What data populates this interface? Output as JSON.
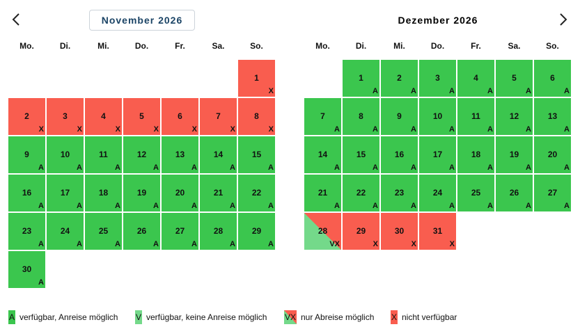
{
  "nav": {
    "prev_icon": "chevron-left-icon",
    "next_icon": "chevron-right-icon"
  },
  "weekdays": [
    "Mo.",
    "Di.",
    "Mi.",
    "Do.",
    "Fr.",
    "Sa.",
    "So."
  ],
  "months": [
    {
      "title": "November 2026",
      "title_is_button": true,
      "start_offset": 6,
      "days": [
        {
          "day": "1",
          "status": "X",
          "mark": "X"
        },
        {
          "day": "2",
          "status": "X",
          "mark": "X"
        },
        {
          "day": "3",
          "status": "X",
          "mark": "X"
        },
        {
          "day": "4",
          "status": "X",
          "mark": "X"
        },
        {
          "day": "5",
          "status": "X",
          "mark": "X"
        },
        {
          "day": "6",
          "status": "X",
          "mark": "X"
        },
        {
          "day": "7",
          "status": "X",
          "mark": "X"
        },
        {
          "day": "8",
          "status": "X",
          "mark": "X"
        },
        {
          "day": "9",
          "status": "A",
          "mark": "A"
        },
        {
          "day": "10",
          "status": "A",
          "mark": "A"
        },
        {
          "day": "11",
          "status": "A",
          "mark": "A"
        },
        {
          "day": "12",
          "status": "A",
          "mark": "A"
        },
        {
          "day": "13",
          "status": "A",
          "mark": "A"
        },
        {
          "day": "14",
          "status": "A",
          "mark": "A"
        },
        {
          "day": "15",
          "status": "A",
          "mark": "A"
        },
        {
          "day": "16",
          "status": "A",
          "mark": "A"
        },
        {
          "day": "17",
          "status": "A",
          "mark": "A"
        },
        {
          "day": "18",
          "status": "A",
          "mark": "A"
        },
        {
          "day": "19",
          "status": "A",
          "mark": "A"
        },
        {
          "day": "20",
          "status": "A",
          "mark": "A"
        },
        {
          "day": "21",
          "status": "A",
          "mark": "A"
        },
        {
          "day": "22",
          "status": "A",
          "mark": "A"
        },
        {
          "day": "23",
          "status": "A",
          "mark": "A"
        },
        {
          "day": "24",
          "status": "A",
          "mark": "A"
        },
        {
          "day": "25",
          "status": "A",
          "mark": "A"
        },
        {
          "day": "26",
          "status": "A",
          "mark": "A"
        },
        {
          "day": "27",
          "status": "A",
          "mark": "A"
        },
        {
          "day": "28",
          "status": "A",
          "mark": "A"
        },
        {
          "day": "29",
          "status": "A",
          "mark": "A"
        },
        {
          "day": "30",
          "status": "A",
          "mark": "A"
        }
      ]
    },
    {
      "title": "Dezember 2026",
      "title_is_button": false,
      "start_offset": 1,
      "days": [
        {
          "day": "1",
          "status": "A",
          "mark": "A"
        },
        {
          "day": "2",
          "status": "A",
          "mark": "A"
        },
        {
          "day": "3",
          "status": "A",
          "mark": "A"
        },
        {
          "day": "4",
          "status": "A",
          "mark": "A"
        },
        {
          "day": "5",
          "status": "A",
          "mark": "A"
        },
        {
          "day": "6",
          "status": "A",
          "mark": "A"
        },
        {
          "day": "7",
          "status": "A",
          "mark": "A"
        },
        {
          "day": "8",
          "status": "A",
          "mark": "A"
        },
        {
          "day": "9",
          "status": "A",
          "mark": "A"
        },
        {
          "day": "10",
          "status": "A",
          "mark": "A"
        },
        {
          "day": "11",
          "status": "A",
          "mark": "A"
        },
        {
          "day": "12",
          "status": "A",
          "mark": "A"
        },
        {
          "day": "13",
          "status": "A",
          "mark": "A"
        },
        {
          "day": "14",
          "status": "A",
          "mark": "A"
        },
        {
          "day": "15",
          "status": "A",
          "mark": "A"
        },
        {
          "day": "16",
          "status": "A",
          "mark": "A"
        },
        {
          "day": "17",
          "status": "A",
          "mark": "A"
        },
        {
          "day": "18",
          "status": "A",
          "mark": "A"
        },
        {
          "day": "19",
          "status": "A",
          "mark": "A"
        },
        {
          "day": "20",
          "status": "A",
          "mark": "A"
        },
        {
          "day": "21",
          "status": "A",
          "mark": "A"
        },
        {
          "day": "22",
          "status": "A",
          "mark": "A"
        },
        {
          "day": "23",
          "status": "A",
          "mark": "A"
        },
        {
          "day": "24",
          "status": "A",
          "mark": "A"
        },
        {
          "day": "25",
          "status": "A",
          "mark": "A"
        },
        {
          "day": "26",
          "status": "A",
          "mark": "A"
        },
        {
          "day": "27",
          "status": "A",
          "mark": "A"
        },
        {
          "day": "28",
          "status": "VX",
          "mark": "VX"
        },
        {
          "day": "29",
          "status": "X",
          "mark": "X"
        },
        {
          "day": "30",
          "status": "X",
          "mark": "X"
        },
        {
          "day": "31",
          "status": "X",
          "mark": "X"
        }
      ]
    }
  ],
  "legend": [
    {
      "code": "A",
      "symbol": "A",
      "label": "verfügbar, Anreise möglich"
    },
    {
      "code": "V",
      "symbol": "V",
      "label": "verfügbar, keine Anreise möglich"
    },
    {
      "code": "VX",
      "symbol": "VX",
      "label": "nur Abreise möglich"
    },
    {
      "code": "X",
      "symbol": "X",
      "label": "nicht verfügbar"
    }
  ],
  "colors": {
    "available": "#3bc64e",
    "available_no_arrival": "#74d98a",
    "unavailable": "#f95d4f",
    "title_text": "#1b4466"
  }
}
